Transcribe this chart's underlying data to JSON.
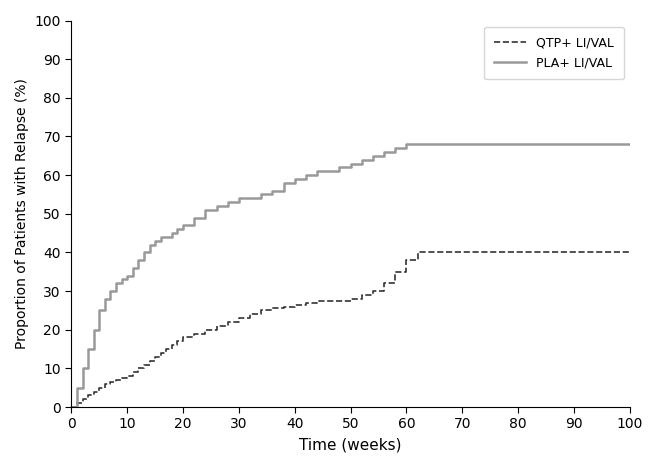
{
  "title": "",
  "xlabel": "Time (weeks)",
  "ylabel": "Proportion of Patients with Relapse (%)",
  "xlim": [
    0,
    100
  ],
  "ylim": [
    0,
    100
  ],
  "xticks": [
    0,
    10,
    20,
    30,
    40,
    50,
    60,
    70,
    80,
    90,
    100
  ],
  "yticks": [
    0,
    10,
    20,
    30,
    40,
    50,
    60,
    70,
    80,
    90,
    100
  ],
  "legend_labels": [
    "QTP+ LI/VAL",
    "PLA+ LI/VAL"
  ],
  "qtp_color": "#333333",
  "pla_color": "#999999",
  "background_color": "#ffffff",
  "qtp_x": [
    0,
    1,
    2,
    3,
    4,
    5,
    6,
    7,
    8,
    9,
    10,
    11,
    12,
    13,
    14,
    15,
    16,
    17,
    18,
    19,
    20,
    22,
    24,
    26,
    28,
    30,
    32,
    34,
    36,
    38,
    40,
    42,
    44,
    46,
    48,
    50,
    52,
    54,
    56,
    58,
    60,
    62,
    64,
    65,
    100
  ],
  "qtp_y": [
    0,
    1,
    2,
    3,
    4,
    5,
    6,
    6.5,
    7,
    7.5,
    8,
    9,
    10,
    11,
    12,
    13,
    14,
    15,
    16,
    17,
    18,
    19,
    20,
    21,
    22,
    23,
    24,
    25,
    25.5,
    26,
    26.5,
    27,
    27.5,
    27.5,
    27.5,
    28,
    29,
    30,
    32,
    35,
    38,
    40,
    40,
    40,
    40
  ],
  "pla_x": [
    0,
    1,
    2,
    3,
    4,
    5,
    6,
    7,
    8,
    9,
    10,
    11,
    12,
    13,
    14,
    15,
    16,
    17,
    18,
    19,
    20,
    22,
    24,
    26,
    28,
    30,
    32,
    34,
    36,
    38,
    40,
    42,
    44,
    46,
    48,
    50,
    52,
    54,
    56,
    58,
    60,
    100
  ],
  "pla_y": [
    0,
    5,
    10,
    15,
    20,
    25,
    28,
    30,
    32,
    33,
    34,
    36,
    38,
    40,
    42,
    43,
    44,
    44,
    45,
    46,
    47,
    49,
    51,
    52,
    53,
    54,
    54,
    55,
    56,
    58,
    59,
    60,
    61,
    61,
    62,
    63,
    64,
    65,
    66,
    67,
    68,
    68
  ]
}
